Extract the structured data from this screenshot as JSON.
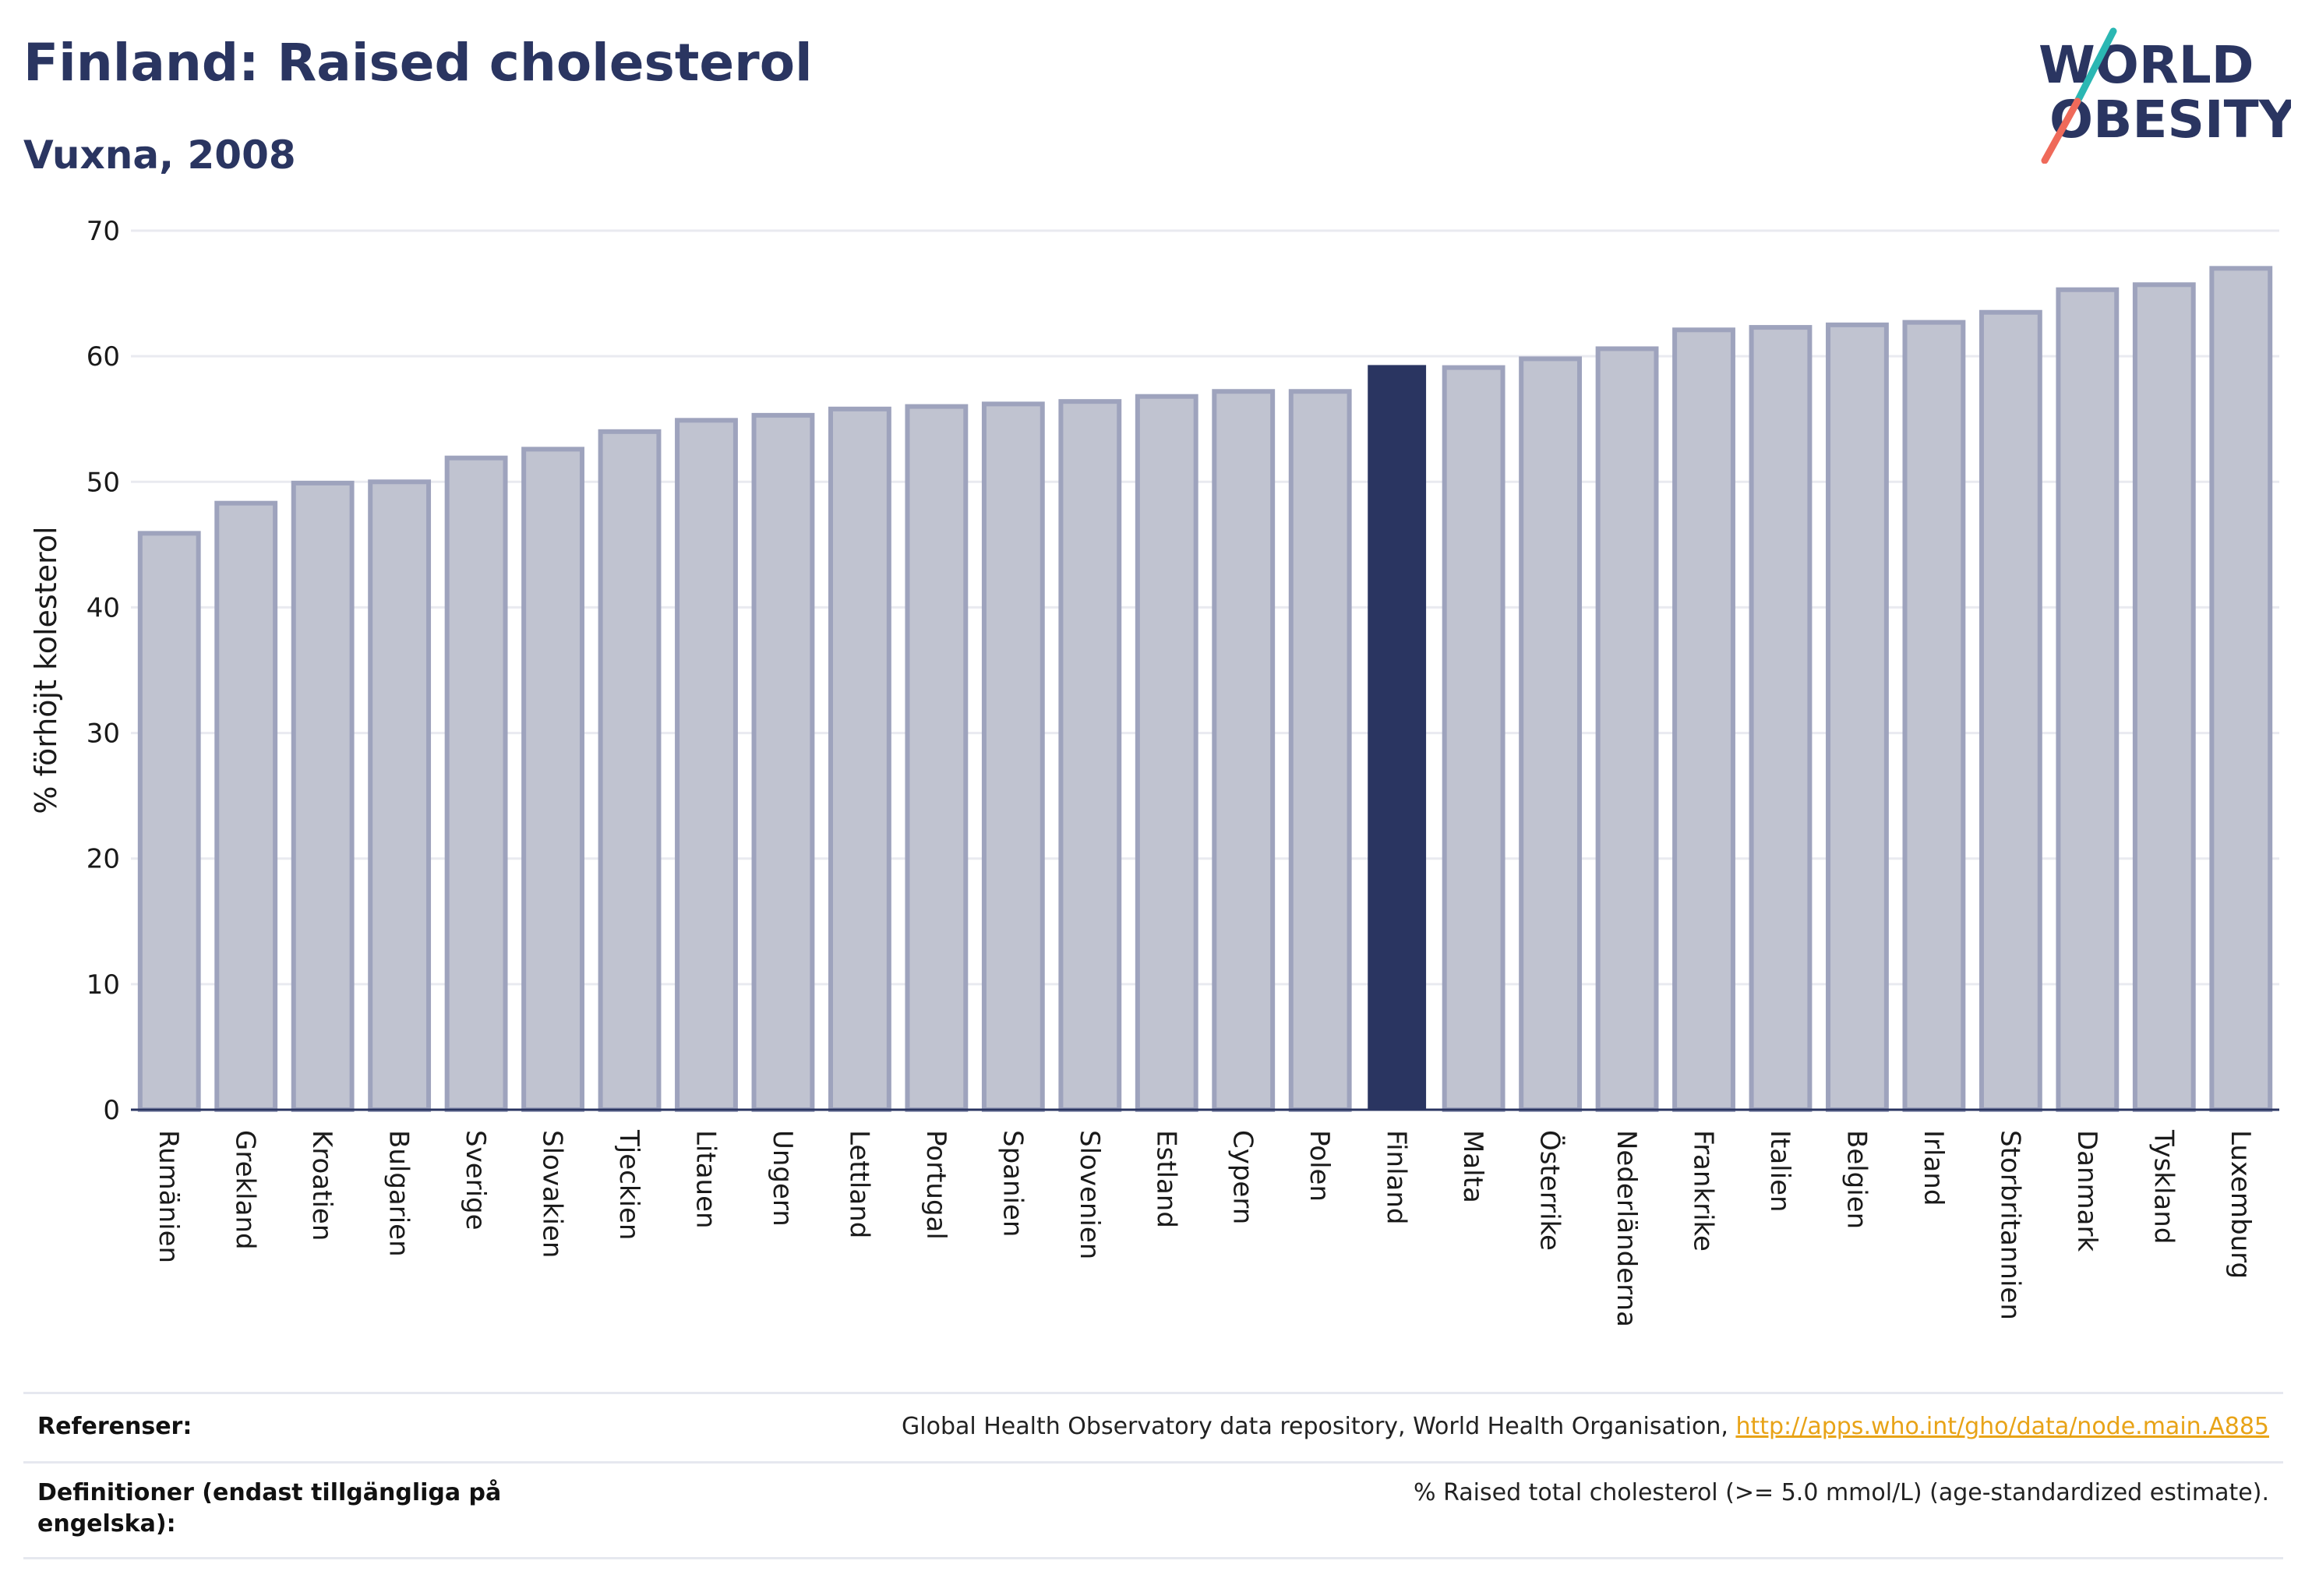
{
  "header": {
    "title": "Finland: Raised cholesterol",
    "subtitle": "Vuxna, 2008"
  },
  "logo": {
    "line1": "W",
    "o1": "O",
    "line1_rest": "RLD",
    "line2": "BESITY",
    "o2": "O",
    "accent_teal": "#2bb7b3",
    "accent_coral": "#ef6a5a",
    "text_color": "#2a3561"
  },
  "colors": {
    "bar": "#c0c3d0",
    "bar_stroke": "#9ea3bd",
    "highlight": "#2a3561",
    "grid": "#e9eaf0",
    "axis": "#2a3561"
  },
  "chart_data": {
    "type": "bar",
    "title": "Finland: Raised cholesterol",
    "subtitle": "Vuxna, 2008",
    "xlabel": "",
    "ylabel": "% förhöjt kolesterol",
    "ylim": [
      0,
      70
    ],
    "yticks": [
      0,
      10,
      20,
      30,
      40,
      50,
      60,
      70
    ],
    "grid": true,
    "highlight": "Finland",
    "categories": [
      "Rumänien",
      "Grekland",
      "Kroatien",
      "Bulgarien",
      "Sverige",
      "Slovakien",
      "Tjeckien",
      "Litauen",
      "Ungern",
      "Lettland",
      "Portugal",
      "Spanien",
      "Slovenien",
      "Estland",
      "Cypern",
      "Polen",
      "Finland",
      "Malta",
      "Österrike",
      "Nederländerna",
      "Frankrike",
      "Italien",
      "Belgien",
      "Irland",
      "Storbritannien",
      "Danmark",
      "Tyskland",
      "Luxemburg"
    ],
    "values": [
      45.9,
      48.3,
      49.9,
      50.0,
      51.9,
      52.6,
      54.0,
      54.9,
      55.3,
      55.8,
      56.0,
      56.2,
      56.4,
      56.8,
      57.2,
      57.2,
      59.3,
      59.1,
      59.8,
      60.6,
      62.1,
      62.3,
      62.5,
      62.7,
      63.5,
      65.3,
      65.7,
      67.0
    ]
  },
  "footer": {
    "references_label": "Referenser:",
    "references_text": "Global Health Observatory data repository, World Health Organisation, ",
    "references_link": "http://apps.who.int/gho/data/node.main.A885",
    "definitions_label": "Definitioner (endast tillgängliga på engelska):",
    "definitions_text": "% Raised total cholesterol (>= 5.0 mmol/L) (age-standardized estimate)."
  }
}
